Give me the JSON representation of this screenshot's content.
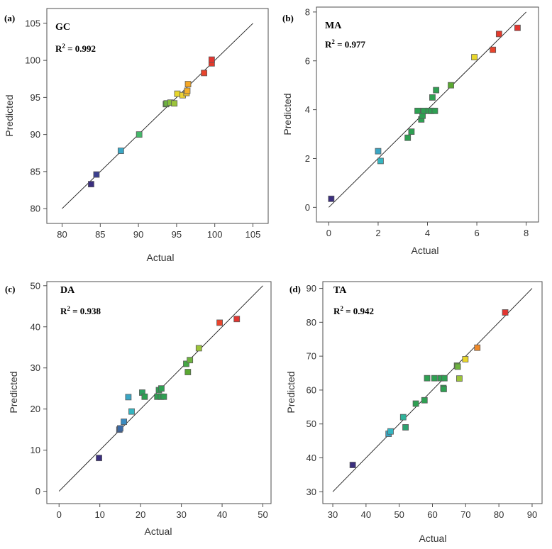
{
  "chart_data": [
    {
      "type": "scatter",
      "panel": "(a)",
      "title": "GC",
      "r2_prefix": "R",
      "r2_suffix": " = 0.992",
      "xlabel": "Actual",
      "ylabel": "Predicted",
      "xlim": [
        78,
        107
      ],
      "ylim": [
        78,
        107
      ],
      "xticks": [
        80,
        85,
        90,
        95,
        100,
        105
      ],
      "yticks": [
        80,
        85,
        90,
        95,
        100,
        105
      ],
      "fit_line": [
        [
          80,
          80
        ],
        [
          105,
          105
        ]
      ],
      "points": [
        {
          "x": 83.8,
          "y": 83.3,
          "color": "#3b2f7f"
        },
        {
          "x": 84.5,
          "y": 84.6,
          "color": "#3b3f8f"
        },
        {
          "x": 87.7,
          "y": 87.8,
          "color": "#3aa6c4"
        },
        {
          "x": 90.1,
          "y": 90.0,
          "color": "#45b86a"
        },
        {
          "x": 93.6,
          "y": 94.1,
          "color": "#5aa832"
        },
        {
          "x": 93.7,
          "y": 94.2,
          "color": "#6db33f"
        },
        {
          "x": 94.2,
          "y": 94.3,
          "color": "#86bf3a"
        },
        {
          "x": 94.7,
          "y": 94.2,
          "color": "#9cc43a"
        },
        {
          "x": 95.1,
          "y": 95.5,
          "color": "#e8d62a"
        },
        {
          "x": 95.8,
          "y": 95.3,
          "color": "#ecd233"
        },
        {
          "x": 96.3,
          "y": 95.6,
          "color": "#f0c12a"
        },
        {
          "x": 96.4,
          "y": 95.9,
          "color": "#f4b02a"
        },
        {
          "x": 96.5,
          "y": 96.8,
          "color": "#f5a623"
        },
        {
          "x": 98.6,
          "y": 98.3,
          "color": "#e8442c"
        },
        {
          "x": 99.6,
          "y": 99.6,
          "color": "#e33a2c"
        },
        {
          "x": 99.6,
          "y": 100.1,
          "color": "#e23530"
        }
      ]
    },
    {
      "type": "scatter",
      "panel": "(b)",
      "title": "MA",
      "r2_prefix": "R",
      "r2_suffix": " = 0.977",
      "xlabel": "Actual",
      "ylabel": "Predicted",
      "xlim": [
        -0.5,
        8.5
      ],
      "ylim": [
        -0.6,
        8.2
      ],
      "xticks": [
        0,
        2,
        4,
        6,
        8
      ],
      "yticks": [
        0,
        2,
        4,
        6,
        8
      ],
      "fit_line": [
        [
          0,
          0
        ],
        [
          8,
          8
        ]
      ],
      "points": [
        {
          "x": 0.1,
          "y": 0.35,
          "color": "#3b2f7f"
        },
        {
          "x": 2.0,
          "y": 2.3,
          "color": "#3aa6c4"
        },
        {
          "x": 2.1,
          "y": 1.9,
          "color": "#35b5c0"
        },
        {
          "x": 3.2,
          "y": 2.85,
          "color": "#2ea052"
        },
        {
          "x": 3.35,
          "y": 3.1,
          "color": "#2ea052"
        },
        {
          "x": 3.6,
          "y": 3.95,
          "color": "#2ea052"
        },
        {
          "x": 3.75,
          "y": 3.6,
          "color": "#2ea052"
        },
        {
          "x": 3.8,
          "y": 3.75,
          "color": "#2ea052"
        },
        {
          "x": 3.85,
          "y": 3.95,
          "color": "#2ea052"
        },
        {
          "x": 4.05,
          "y": 3.95,
          "color": "#2ea052"
        },
        {
          "x": 4.15,
          "y": 3.95,
          "color": "#2ea052"
        },
        {
          "x": 4.2,
          "y": 4.5,
          "color": "#2ea052"
        },
        {
          "x": 4.3,
          "y": 3.95,
          "color": "#2ea052"
        },
        {
          "x": 4.35,
          "y": 4.8,
          "color": "#2ea052"
        },
        {
          "x": 4.95,
          "y": 5.0,
          "color": "#5aa832"
        },
        {
          "x": 5.9,
          "y": 6.15,
          "color": "#e8d62a"
        },
        {
          "x": 6.65,
          "y": 6.45,
          "color": "#e8442c"
        },
        {
          "x": 6.9,
          "y": 7.1,
          "color": "#e33a2c"
        },
        {
          "x": 7.65,
          "y": 7.35,
          "color": "#e23530"
        }
      ]
    },
    {
      "type": "scatter",
      "panel": "(c)",
      "title": "DA",
      "r2_prefix": "R",
      "r2_suffix": " = 0.938",
      "xlabel": "Actual",
      "ylabel": "Predicted",
      "xlim": [
        -3,
        52
      ],
      "ylim": [
        -3,
        51
      ],
      "xticks": [
        0,
        10,
        20,
        30,
        40,
        50
      ],
      "yticks": [
        0,
        10,
        20,
        30,
        40,
        50
      ],
      "fit_line": [
        [
          0,
          0
        ],
        [
          50,
          50
        ]
      ],
      "points": [
        {
          "x": 9.8,
          "y": 8.1,
          "color": "#3b2f7f"
        },
        {
          "x": 14.8,
          "y": 15.0,
          "color": "#3b5f9f"
        },
        {
          "x": 15.0,
          "y": 15.3,
          "color": "#3b6aa6"
        },
        {
          "x": 15.9,
          "y": 16.9,
          "color": "#3a8ac0"
        },
        {
          "x": 17.0,
          "y": 22.9,
          "color": "#3aa6c4"
        },
        {
          "x": 17.8,
          "y": 19.4,
          "color": "#35b5c0"
        },
        {
          "x": 20.4,
          "y": 24.0,
          "color": "#2ea060"
        },
        {
          "x": 21.0,
          "y": 23.0,
          "color": "#2ea052"
        },
        {
          "x": 24.1,
          "y": 23.0,
          "color": "#2ea052"
        },
        {
          "x": 24.5,
          "y": 24.6,
          "color": "#2ea052"
        },
        {
          "x": 25.0,
          "y": 23.0,
          "color": "#2ea052"
        },
        {
          "x": 25.1,
          "y": 25.0,
          "color": "#2ea052"
        },
        {
          "x": 25.7,
          "y": 23.0,
          "color": "#2ea052"
        },
        {
          "x": 31.2,
          "y": 31.0,
          "color": "#45a845"
        },
        {
          "x": 31.6,
          "y": 29.0,
          "color": "#5aa832"
        },
        {
          "x": 32.1,
          "y": 31.9,
          "color": "#6db33f"
        },
        {
          "x": 34.3,
          "y": 34.8,
          "color": "#9cc43a"
        },
        {
          "x": 39.4,
          "y": 41.0,
          "color": "#e8442c"
        },
        {
          "x": 43.6,
          "y": 41.9,
          "color": "#e23530"
        }
      ]
    },
    {
      "type": "scatter",
      "panel": "(d)",
      "title": "TA",
      "r2_prefix": "R",
      "r2_suffix": " = 0.942",
      "xlabel": "Actual",
      "ylabel": "Predicted",
      "xlim": [
        27,
        93
      ],
      "ylim": [
        26.5,
        92
      ],
      "xticks": [
        30,
        40,
        50,
        60,
        70,
        80,
        90
      ],
      "yticks": [
        30,
        40,
        50,
        60,
        70,
        80,
        90
      ],
      "fit_line": [
        [
          30,
          30
        ],
        [
          90,
          90
        ]
      ],
      "points": [
        {
          "x": 36.0,
          "y": 37.9,
          "color": "#3b2f7f"
        },
        {
          "x": 46.8,
          "y": 47.1,
          "color": "#3aa6c4"
        },
        {
          "x": 47.4,
          "y": 47.8,
          "color": "#35b5c0"
        },
        {
          "x": 51.2,
          "y": 52.0,
          "color": "#2fb39a"
        },
        {
          "x": 51.9,
          "y": 49.0,
          "color": "#2ea070"
        },
        {
          "x": 55.0,
          "y": 56.0,
          "color": "#2ea052"
        },
        {
          "x": 57.6,
          "y": 57.0,
          "color": "#2ea052"
        },
        {
          "x": 58.4,
          "y": 63.5,
          "color": "#2ea052"
        },
        {
          "x": 60.6,
          "y": 63.5,
          "color": "#2ea052"
        },
        {
          "x": 62.5,
          "y": 63.5,
          "color": "#2ea052"
        },
        {
          "x": 63.3,
          "y": 60.6,
          "color": "#2ea052"
        },
        {
          "x": 63.4,
          "y": 60.3,
          "color": "#2ea052"
        },
        {
          "x": 63.6,
          "y": 63.5,
          "color": "#2ea052"
        },
        {
          "x": 67.4,
          "y": 67.2,
          "color": "#5aa832"
        },
        {
          "x": 67.6,
          "y": 66.9,
          "color": "#6db33f"
        },
        {
          "x": 68.1,
          "y": 63.4,
          "color": "#9cc43a"
        },
        {
          "x": 69.9,
          "y": 69.1,
          "color": "#e8d62a"
        },
        {
          "x": 73.5,
          "y": 72.5,
          "color": "#f08a2a"
        },
        {
          "x": 81.9,
          "y": 82.9,
          "color": "#e23530"
        }
      ]
    }
  ]
}
